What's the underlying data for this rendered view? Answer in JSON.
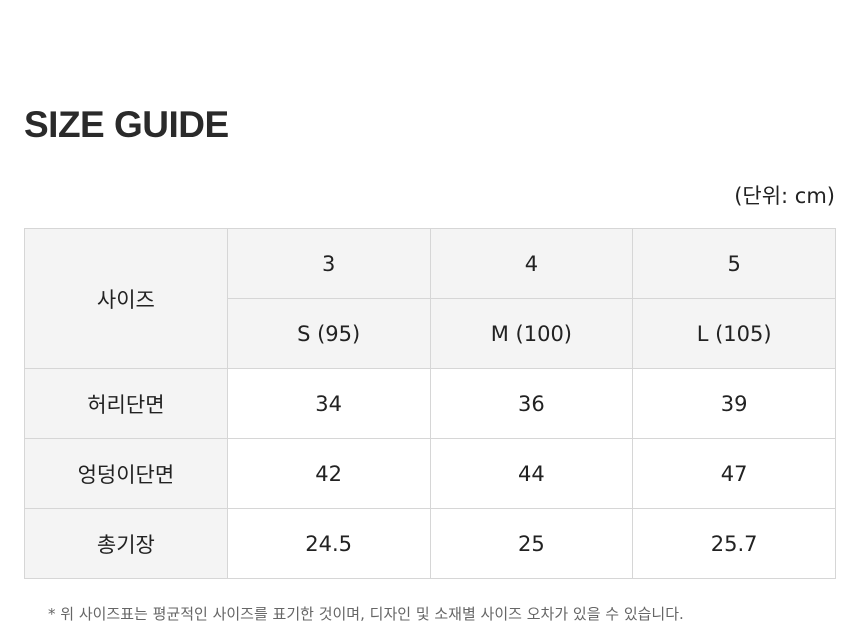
{
  "header": {
    "title": "SIZE GUIDE",
    "unit": "(단위: cm)"
  },
  "table": {
    "header_label": "사이즈",
    "sizes": [
      "3",
      "4",
      "5"
    ],
    "size_labels": [
      "S (95)",
      "M (100)",
      "L (105)"
    ],
    "rows": [
      [
        "허리단면",
        "34",
        "36",
        "39"
      ],
      [
        "엉덩이단면",
        "42",
        "44",
        "47"
      ],
      [
        "총기장",
        "24.5",
        "25",
        "25.7"
      ]
    ]
  },
  "note": "* 위 사이즈표는 평균적인 사이즈를 표기한 것이며, 디자인 및 소재별 사이즈 오차가 있을 수 있습니다."
}
